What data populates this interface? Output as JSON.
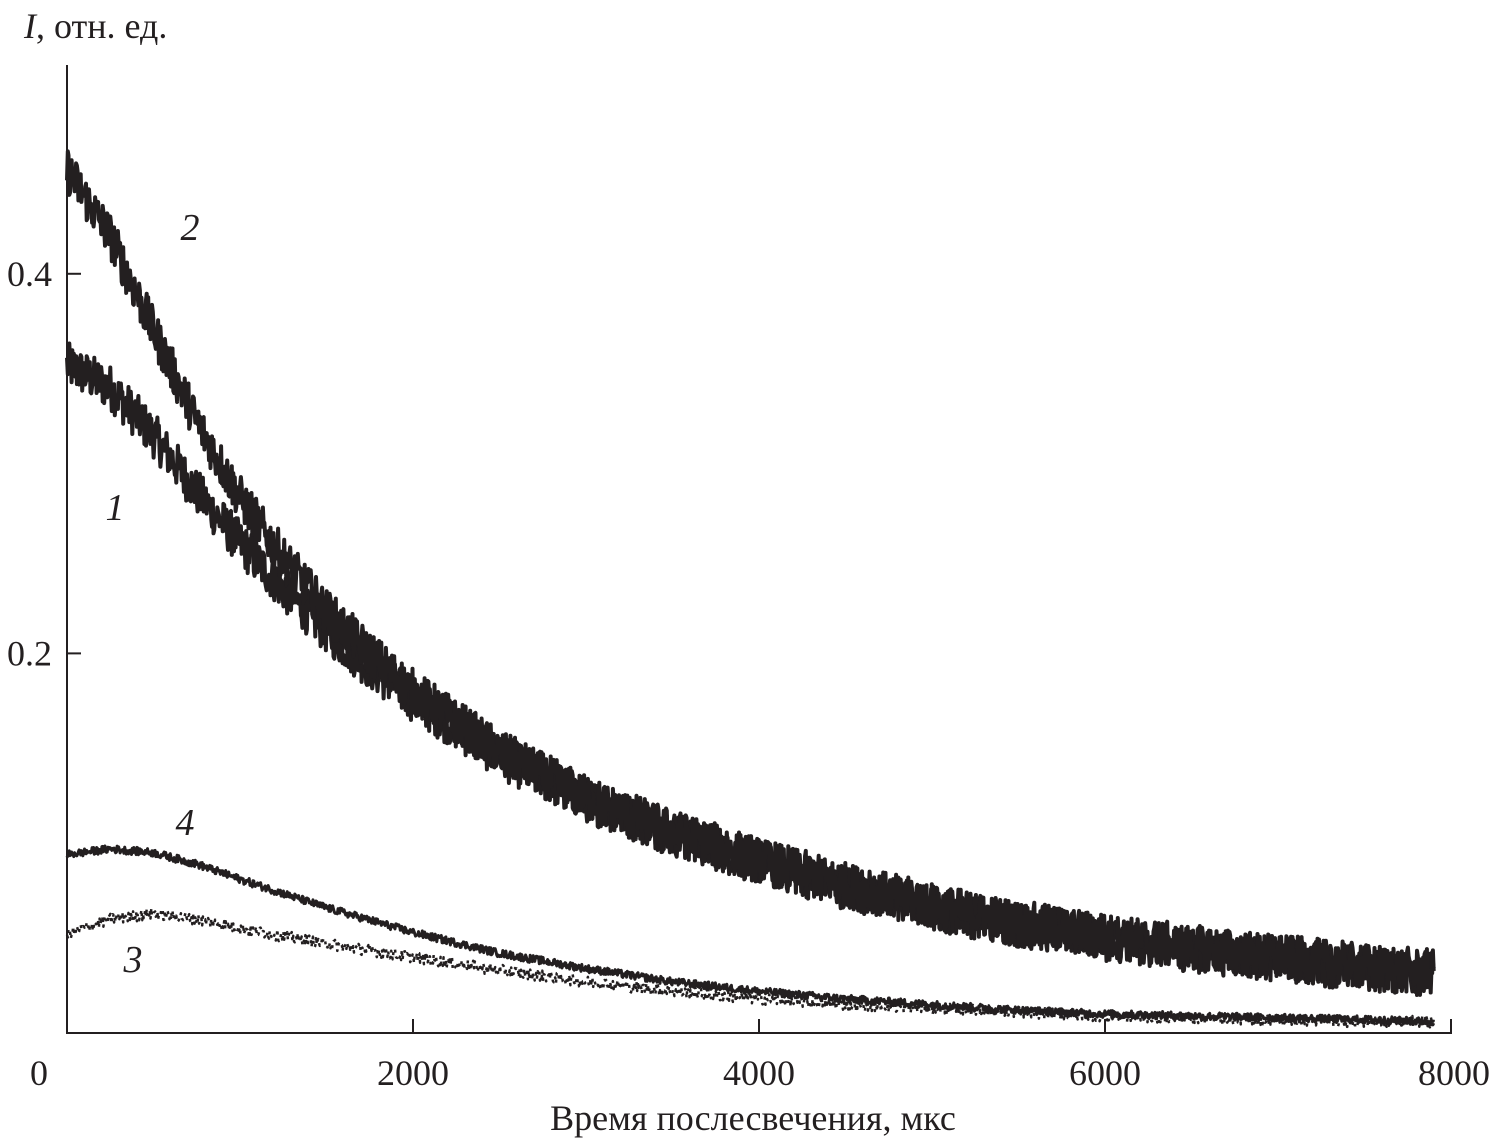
{
  "chart_data": {
    "type": "line",
    "title": "",
    "xlabel": "Время послесвечения, мкс",
    "ylabel_italic": "I",
    "ylabel_rest": ", отн. ед.",
    "xlim": [
      0,
      8000
    ],
    "ylim": [
      0,
      0.51
    ],
    "x_ticks": [
      0,
      2000,
      4000,
      6000,
      8000
    ],
    "x_tick_labels": [
      "0",
      "2000",
      "4000",
      "6000",
      "8000"
    ],
    "y_ticks": [
      0.2,
      0.4
    ],
    "y_tick_labels": [
      "0.2",
      "0.4"
    ],
    "grid": false,
    "legend": "none",
    "series": [
      {
        "name": "1",
        "color": "#231f20",
        "noise": 0.012,
        "points": [
          [
            0,
            0.352
          ],
          [
            250,
            0.34
          ],
          [
            500,
            0.315
          ],
          [
            750,
            0.285
          ],
          [
            1000,
            0.258
          ],
          [
            1250,
            0.234
          ],
          [
            1500,
            0.212
          ],
          [
            1750,
            0.193
          ],
          [
            2000,
            0.176
          ],
          [
            2500,
            0.146
          ],
          [
            3000,
            0.123
          ],
          [
            3500,
            0.105
          ],
          [
            4000,
            0.09
          ],
          [
            4500,
            0.077
          ],
          [
            5000,
            0.066
          ],
          [
            5500,
            0.057
          ],
          [
            6000,
            0.05
          ],
          [
            6500,
            0.044
          ],
          [
            7000,
            0.039
          ],
          [
            7500,
            0.034
          ],
          [
            7900,
            0.031
          ]
        ]
      },
      {
        "name": "2",
        "color": "#231f20",
        "noise": 0.012,
        "points": [
          [
            0,
            0.455
          ],
          [
            250,
            0.42
          ],
          [
            500,
            0.37
          ],
          [
            750,
            0.322
          ],
          [
            1000,
            0.282
          ],
          [
            1250,
            0.25
          ],
          [
            1500,
            0.222
          ],
          [
            1750,
            0.2
          ],
          [
            2000,
            0.18
          ],
          [
            2500,
            0.148
          ],
          [
            3000,
            0.124
          ],
          [
            3500,
            0.106
          ],
          [
            4000,
            0.091
          ],
          [
            4500,
            0.078
          ],
          [
            5000,
            0.067
          ],
          [
            5500,
            0.058
          ],
          [
            6000,
            0.051
          ],
          [
            6500,
            0.045
          ],
          [
            7000,
            0.04
          ],
          [
            7500,
            0.035
          ],
          [
            7900,
            0.032
          ]
        ]
      },
      {
        "name": "3",
        "color": "#231f20",
        "noise": 0.003,
        "points": [
          [
            0,
            0.052
          ],
          [
            250,
            0.06
          ],
          [
            500,
            0.063
          ],
          [
            750,
            0.06
          ],
          [
            1000,
            0.055
          ],
          [
            1500,
            0.047
          ],
          [
            2000,
            0.04
          ],
          [
            2500,
            0.033
          ],
          [
            3000,
            0.027
          ],
          [
            3500,
            0.022
          ],
          [
            4000,
            0.018
          ],
          [
            4500,
            0.015
          ],
          [
            5000,
            0.013
          ],
          [
            5500,
            0.011
          ],
          [
            6000,
            0.009
          ],
          [
            6500,
            0.008
          ],
          [
            7000,
            0.007
          ],
          [
            7500,
            0.006
          ],
          [
            7900,
            0.006
          ]
        ]
      },
      {
        "name": "4",
        "color": "#231f20",
        "noise": 0.002,
        "points": [
          [
            0,
            0.094
          ],
          [
            250,
            0.097
          ],
          [
            500,
            0.095
          ],
          [
            750,
            0.089
          ],
          [
            1000,
            0.081
          ],
          [
            1500,
            0.066
          ],
          [
            2000,
            0.053
          ],
          [
            2500,
            0.042
          ],
          [
            3000,
            0.034
          ],
          [
            3500,
            0.027
          ],
          [
            4000,
            0.022
          ],
          [
            4500,
            0.018
          ],
          [
            5000,
            0.015
          ],
          [
            5500,
            0.012
          ],
          [
            6000,
            0.01
          ],
          [
            6500,
            0.009
          ],
          [
            7000,
            0.008
          ],
          [
            7500,
            0.007
          ],
          [
            7900,
            0.006
          ]
        ]
      }
    ]
  }
}
